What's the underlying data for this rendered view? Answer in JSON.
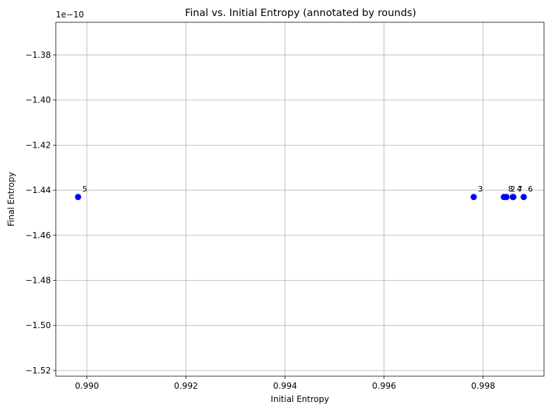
{
  "chart_data": {
    "type": "scatter",
    "title": "Final vs. Initial Entropy (annotated by rounds)",
    "xlabel": "Initial Entropy",
    "ylabel": "Final Entropy",
    "y_offset_label": "1e−10",
    "y_scale_factor": 1e-10,
    "xlim": [
      0.98937,
      0.99923
    ],
    "ylim": [
      -1.5225,
      -1.3655
    ],
    "xticks": [
      0.99,
      0.992,
      0.994,
      0.996,
      0.998
    ],
    "xtick_labels": [
      "0.990",
      "0.992",
      "0.994",
      "0.996",
      "0.998"
    ],
    "yticks": [
      -1.38,
      -1.4,
      -1.42,
      -1.44,
      -1.46,
      -1.48,
      -1.5,
      -1.52
    ],
    "ytick_labels": [
      "−1.38",
      "−1.40",
      "−1.42",
      "−1.44",
      "−1.46",
      "−1.48",
      "−1.50",
      "−1.52"
    ],
    "grid": true,
    "marker_color": "#0000ff",
    "points": [
      {
        "x": 0.98982,
        "y": -1.443,
        "label": "5"
      },
      {
        "x": 0.99781,
        "y": -1.443,
        "label": "3"
      },
      {
        "x": 0.99842,
        "y": -1.443,
        "label": "8"
      },
      {
        "x": 0.99847,
        "y": -1.443,
        "label": "2"
      },
      {
        "x": 0.9986,
        "y": -1.443,
        "label": "4"
      },
      {
        "x": 0.99861,
        "y": -1.443,
        "label": "7"
      },
      {
        "x": 0.99882,
        "y": -1.443,
        "label": "6"
      }
    ]
  }
}
